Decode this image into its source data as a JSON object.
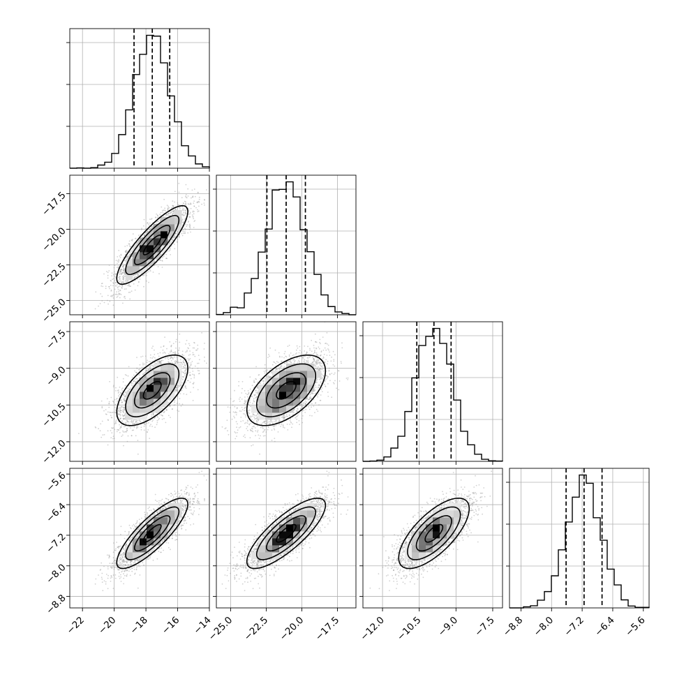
{
  "chart_data": {
    "type": "corner",
    "n_params": 4,
    "axes": [
      {
        "range": [
          -22.8,
          -14.0
        ],
        "ticks": [
          -22,
          -20,
          -18,
          -16,
          -14
        ],
        "tick_labels": [
          "−22",
          "−20",
          "−18",
          "−16",
          "−14"
        ]
      },
      {
        "range": [
          -26.0,
          -16.2
        ],
        "ticks": [
          -25.0,
          -22.5,
          -20.0,
          -17.5
        ],
        "tick_labels": [
          "−25.0",
          "−22.5",
          "−20.0",
          "−17.5"
        ]
      },
      {
        "range": [
          -12.8,
          -7.1
        ],
        "ticks": [
          -12.0,
          -10.5,
          -9.0,
          -7.5
        ],
        "tick_labels": [
          "−12.0",
          "−10.5",
          "−9.0",
          "−7.5"
        ]
      },
      {
        "range": [
          -9.1,
          -5.45
        ],
        "ticks": [
          -8.8,
          -8.0,
          -7.2,
          -6.4,
          -5.6
        ],
        "tick_labels": [
          "−8.8",
          "−8.0",
          "−7.2",
          "−6.4",
          "−5.6"
        ]
      }
    ],
    "parameters": [
      {
        "mean": -17.6,
        "sd": 1.12,
        "quantiles": [
          -18.75,
          -17.6,
          -16.5
        ]
      },
      {
        "mean": -21.1,
        "sd": 1.38,
        "quantiles": [
          -22.45,
          -21.1,
          -19.75
        ]
      },
      {
        "mean": -9.9,
        "sd": 0.72,
        "quantiles": [
          -10.6,
          -9.9,
          -9.2
        ]
      },
      {
        "mean": -7.15,
        "sd": 0.46,
        "quantiles": [
          -7.62,
          -7.15,
          -6.68
        ]
      }
    ],
    "correlations": [
      [
        1.0,
        0.85,
        0.62,
        0.83
      ],
      [
        0.85,
        1.0,
        0.55,
        0.8
      ],
      [
        0.62,
        0.55,
        1.0,
        0.7
      ],
      [
        0.83,
        0.8,
        0.7,
        1.0
      ]
    ],
    "histogram_bins": 20,
    "contour_levels_sigma": [
      0.5,
      1.0,
      1.5,
      2.0
    ],
    "quantile_levels": [
      0.16,
      0.5,
      0.84
    ],
    "n_samples": 3000,
    "grid": true,
    "colors": {
      "line": "#000000",
      "points": "#9a9a9a",
      "grid": "#b0b0b0"
    }
  }
}
